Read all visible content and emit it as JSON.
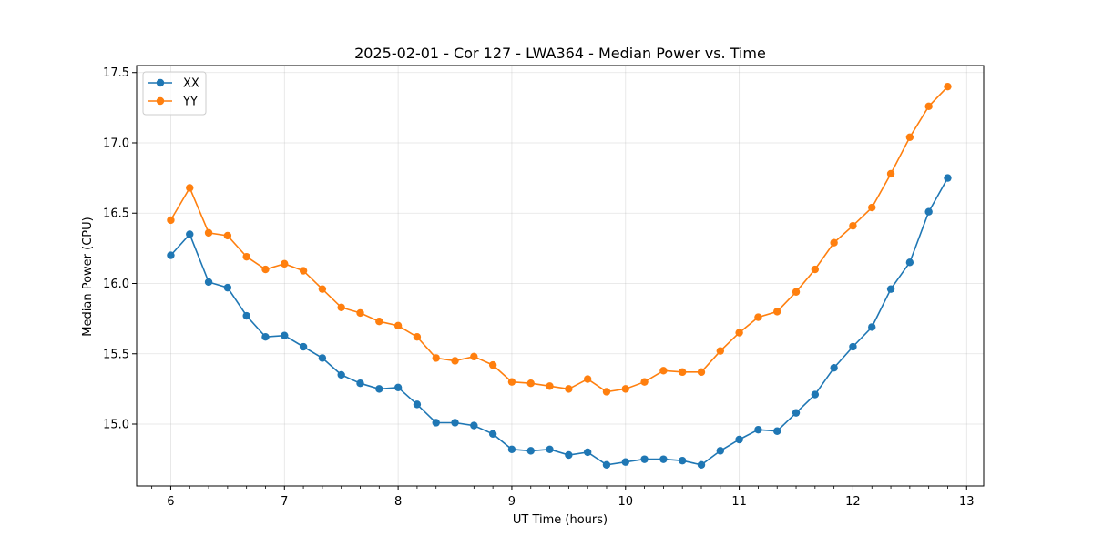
{
  "chart_data": {
    "type": "line",
    "title": "2025-02-01 - Cor 127 - LWA364 - Median Power vs. Time",
    "xlabel": "UT Time (hours)",
    "ylabel": "Median Power (CPU)",
    "xlim": [
      5.7,
      13.15
    ],
    "ylim": [
      14.56,
      17.55
    ],
    "xticks": [
      6,
      7,
      8,
      9,
      10,
      11,
      12,
      13
    ],
    "xtick_labels": [
      "6",
      "7",
      "8",
      "9",
      "10",
      "11",
      "12",
      "13"
    ],
    "yticks": [
      15.0,
      15.5,
      16.0,
      16.5,
      17.0,
      17.5
    ],
    "ytick_labels": [
      "15.0",
      "15.5",
      "16.0",
      "16.5",
      "17.0",
      "17.5"
    ],
    "grid": true,
    "legend_position": "top-left",
    "x": [
      6.0,
      6.1667,
      6.3333,
      6.5,
      6.6667,
      6.8333,
      7.0,
      7.1667,
      7.3333,
      7.5,
      7.6667,
      7.8333,
      8.0,
      8.1667,
      8.3333,
      8.5,
      8.6667,
      8.8333,
      9.0,
      9.1667,
      9.3333,
      9.5,
      9.6667,
      9.8333,
      10.0,
      10.1667,
      10.3333,
      10.5,
      10.6667,
      10.8333,
      11.0,
      11.1667,
      11.3333,
      11.5,
      11.6667,
      11.8333,
      12.0,
      12.1667,
      12.3333,
      12.5,
      12.6667,
      12.8333
    ],
    "series": [
      {
        "name": "XX",
        "color": "#1f77b4",
        "values": [
          16.2,
          16.35,
          16.01,
          15.97,
          15.77,
          15.62,
          15.63,
          15.55,
          15.47,
          15.35,
          15.29,
          15.25,
          15.26,
          15.14,
          15.01,
          15.01,
          14.99,
          14.93,
          14.82,
          14.81,
          14.82,
          14.78,
          14.8,
          14.71,
          14.73,
          14.75,
          14.75,
          14.74,
          14.71,
          14.81,
          14.89,
          14.96,
          14.95,
          15.08,
          15.21,
          15.4,
          15.55,
          15.69,
          15.96,
          16.15,
          16.51,
          16.75
        ]
      },
      {
        "name": "YY",
        "color": "#ff7f0e",
        "values": [
          16.45,
          16.68,
          16.36,
          16.34,
          16.19,
          16.1,
          16.14,
          16.09,
          15.96,
          15.83,
          15.79,
          15.73,
          15.7,
          15.62,
          15.47,
          15.45,
          15.48,
          15.42,
          15.3,
          15.29,
          15.27,
          15.25,
          15.32,
          15.23,
          15.25,
          15.3,
          15.38,
          15.37,
          15.37,
          15.52,
          15.65,
          15.76,
          15.8,
          15.94,
          16.1,
          16.29,
          16.41,
          16.54,
          16.78,
          17.04,
          17.26,
          17.4
        ]
      }
    ]
  }
}
